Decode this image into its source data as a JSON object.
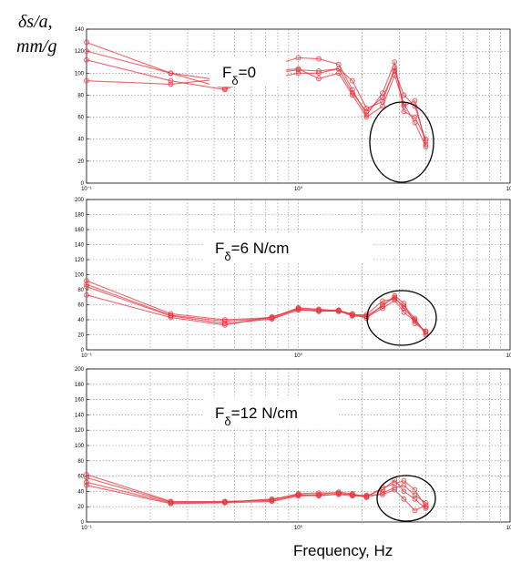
{
  "y_axis_label": {
    "line1": "δs/a,",
    "line2": "mm/g"
  },
  "x_axis_label": "Frequency, Hz",
  "chart_data": [
    {
      "type": "line",
      "title": {
        "base": "F",
        "sub": "δ",
        "rest": "=0"
      },
      "xscale": "log",
      "xlim": [
        0.1,
        10
      ],
      "ylim": [
        0,
        140
      ],
      "yticks": [
        "0",
        "20",
        "40",
        "60",
        "80",
        "100",
        "120",
        "140"
      ],
      "xticks": [
        "10⁻¹",
        "10⁰",
        "10¹"
      ],
      "grid": true,
      "series_color": "#e8323c",
      "series": [
        {
          "x": [
            0.1,
            0.25,
            0.45,
            0.75,
            1.0,
            1.25,
            1.55,
            1.8,
            2.1,
            2.5,
            2.85,
            3.15,
            3.55,
            4.0
          ],
          "y": [
            128,
            100,
            93,
            100,
            103,
            102,
            104,
            93,
            68,
            74,
            105,
            70,
            75,
            35
          ]
        },
        {
          "x": [
            0.1,
            0.25,
            0.45,
            0.75,
            1.0,
            1.25,
            1.55,
            1.8,
            2.1,
            2.5,
            2.85,
            3.15,
            3.55,
            4.0
          ],
          "y": [
            120,
            100,
            86,
            107,
            114,
            113,
            108,
            85,
            62,
            82,
            110,
            65,
            60,
            40
          ]
        },
        {
          "x": [
            0.1,
            0.25,
            0.45,
            0.75,
            1.0,
            1.25,
            1.55,
            1.8,
            2.1,
            2.5,
            2.85,
            3.15,
            3.55,
            4.0
          ],
          "y": [
            112,
            93,
            85,
            102,
            104,
            95,
            100,
            80,
            60,
            70,
            98,
            72,
            55,
            33
          ]
        },
        {
          "x": [
            0.1,
            0.25,
            0.45,
            0.75,
            1.0,
            1.25,
            1.55,
            1.8,
            2.1,
            2.5,
            2.85,
            3.15,
            3.55,
            4.0
          ],
          "y": [
            93,
            90,
            95,
            95,
            100,
            100,
            104,
            82,
            65,
            78,
            102,
            80,
            70,
            38
          ]
        }
      ]
    },
    {
      "type": "line",
      "title": {
        "base": "F",
        "sub": "δ",
        "rest": "=6 N/cm"
      },
      "xscale": "log",
      "xlim": [
        0.1,
        10
      ],
      "ylim": [
        0,
        200
      ],
      "yticks": [
        "0",
        "20",
        "40",
        "60",
        "80",
        "100",
        "120",
        "140",
        "160",
        "180",
        "200"
      ],
      "xticks": [
        "10⁻¹",
        "10⁰",
        "10¹"
      ],
      "grid": true,
      "series_color": "#e8323c",
      "series": [
        {
          "x": [
            0.1,
            0.25,
            0.45,
            0.75,
            1.0,
            1.25,
            1.55,
            1.8,
            2.1,
            2.5,
            2.85,
            3.15,
            3.55,
            4.0
          ],
          "y": [
            92,
            48,
            40,
            43,
            56,
            54,
            52,
            48,
            42,
            60,
            70,
            55,
            40,
            22
          ]
        },
        {
          "x": [
            0.1,
            0.25,
            0.45,
            0.75,
            1.0,
            1.25,
            1.55,
            1.8,
            2.1,
            2.5,
            2.85,
            3.15,
            3.55,
            4.0
          ],
          "y": [
            87,
            46,
            38,
            42,
            55,
            53,
            51,
            47,
            45,
            58,
            72,
            62,
            35,
            25
          ]
        },
        {
          "x": [
            0.1,
            0.25,
            0.45,
            0.75,
            1.0,
            1.25,
            1.55,
            1.8,
            2.1,
            2.5,
            2.85,
            3.15,
            3.55,
            4.0
          ],
          "y": [
            84,
            45,
            35,
            41,
            53,
            52,
            53,
            46,
            47,
            65,
            68,
            58,
            42,
            20
          ]
        },
        {
          "x": [
            0.1,
            0.25,
            0.45,
            0.75,
            1.0,
            1.25,
            1.55,
            1.8,
            2.1,
            2.5,
            2.85,
            3.15,
            3.55,
            4.0
          ],
          "y": [
            73,
            43,
            33,
            44,
            54,
            51,
            52,
            45,
            44,
            55,
            66,
            50,
            38,
            24
          ]
        }
      ]
    },
    {
      "type": "line",
      "title": {
        "base": "F",
        "sub": "δ",
        "rest": "=12 N/cm"
      },
      "xscale": "log",
      "xlim": [
        0.1,
        10
      ],
      "ylim": [
        0,
        200
      ],
      "yticks": [
        "0",
        "20",
        "40",
        "60",
        "80",
        "100",
        "120",
        "140",
        "160",
        "180",
        "200"
      ],
      "xticks": [
        "10⁻¹",
        "10⁰",
        "10¹"
      ],
      "grid": true,
      "series_color": "#e8323c",
      "series": [
        {
          "x": [
            0.1,
            0.25,
            0.45,
            0.75,
            1.0,
            1.25,
            1.55,
            1.8,
            2.1,
            2.5,
            2.85,
            3.15,
            3.55,
            4.0
          ],
          "y": [
            62,
            27,
            26,
            29,
            37,
            38,
            38,
            35,
            33,
            45,
            50,
            54,
            42,
            20
          ]
        },
        {
          "x": [
            0.1,
            0.25,
            0.45,
            0.75,
            1.0,
            1.25,
            1.55,
            1.8,
            2.1,
            2.5,
            2.85,
            3.15,
            3.55,
            4.0
          ],
          "y": [
            58,
            26,
            27,
            28,
            35,
            36,
            39,
            37,
            32,
            38,
            45,
            48,
            35,
            25
          ]
        },
        {
          "x": [
            0.1,
            0.25,
            0.45,
            0.75,
            1.0,
            1.25,
            1.55,
            1.8,
            2.1,
            2.5,
            2.85,
            3.15,
            3.55,
            4.0
          ],
          "y": [
            52,
            25,
            26,
            30,
            36,
            34,
            37,
            36,
            34,
            42,
            55,
            40,
            30,
            18
          ]
        },
        {
          "x": [
            0.1,
            0.25,
            0.45,
            0.75,
            1.0,
            1.25,
            1.55,
            1.8,
            2.1,
            2.5,
            2.85,
            3.15,
            3.55,
            4.0
          ],
          "y": [
            48,
            24,
            25,
            27,
            34,
            35,
            36,
            34,
            35,
            36,
            42,
            30,
            15,
            22
          ]
        }
      ]
    }
  ]
}
